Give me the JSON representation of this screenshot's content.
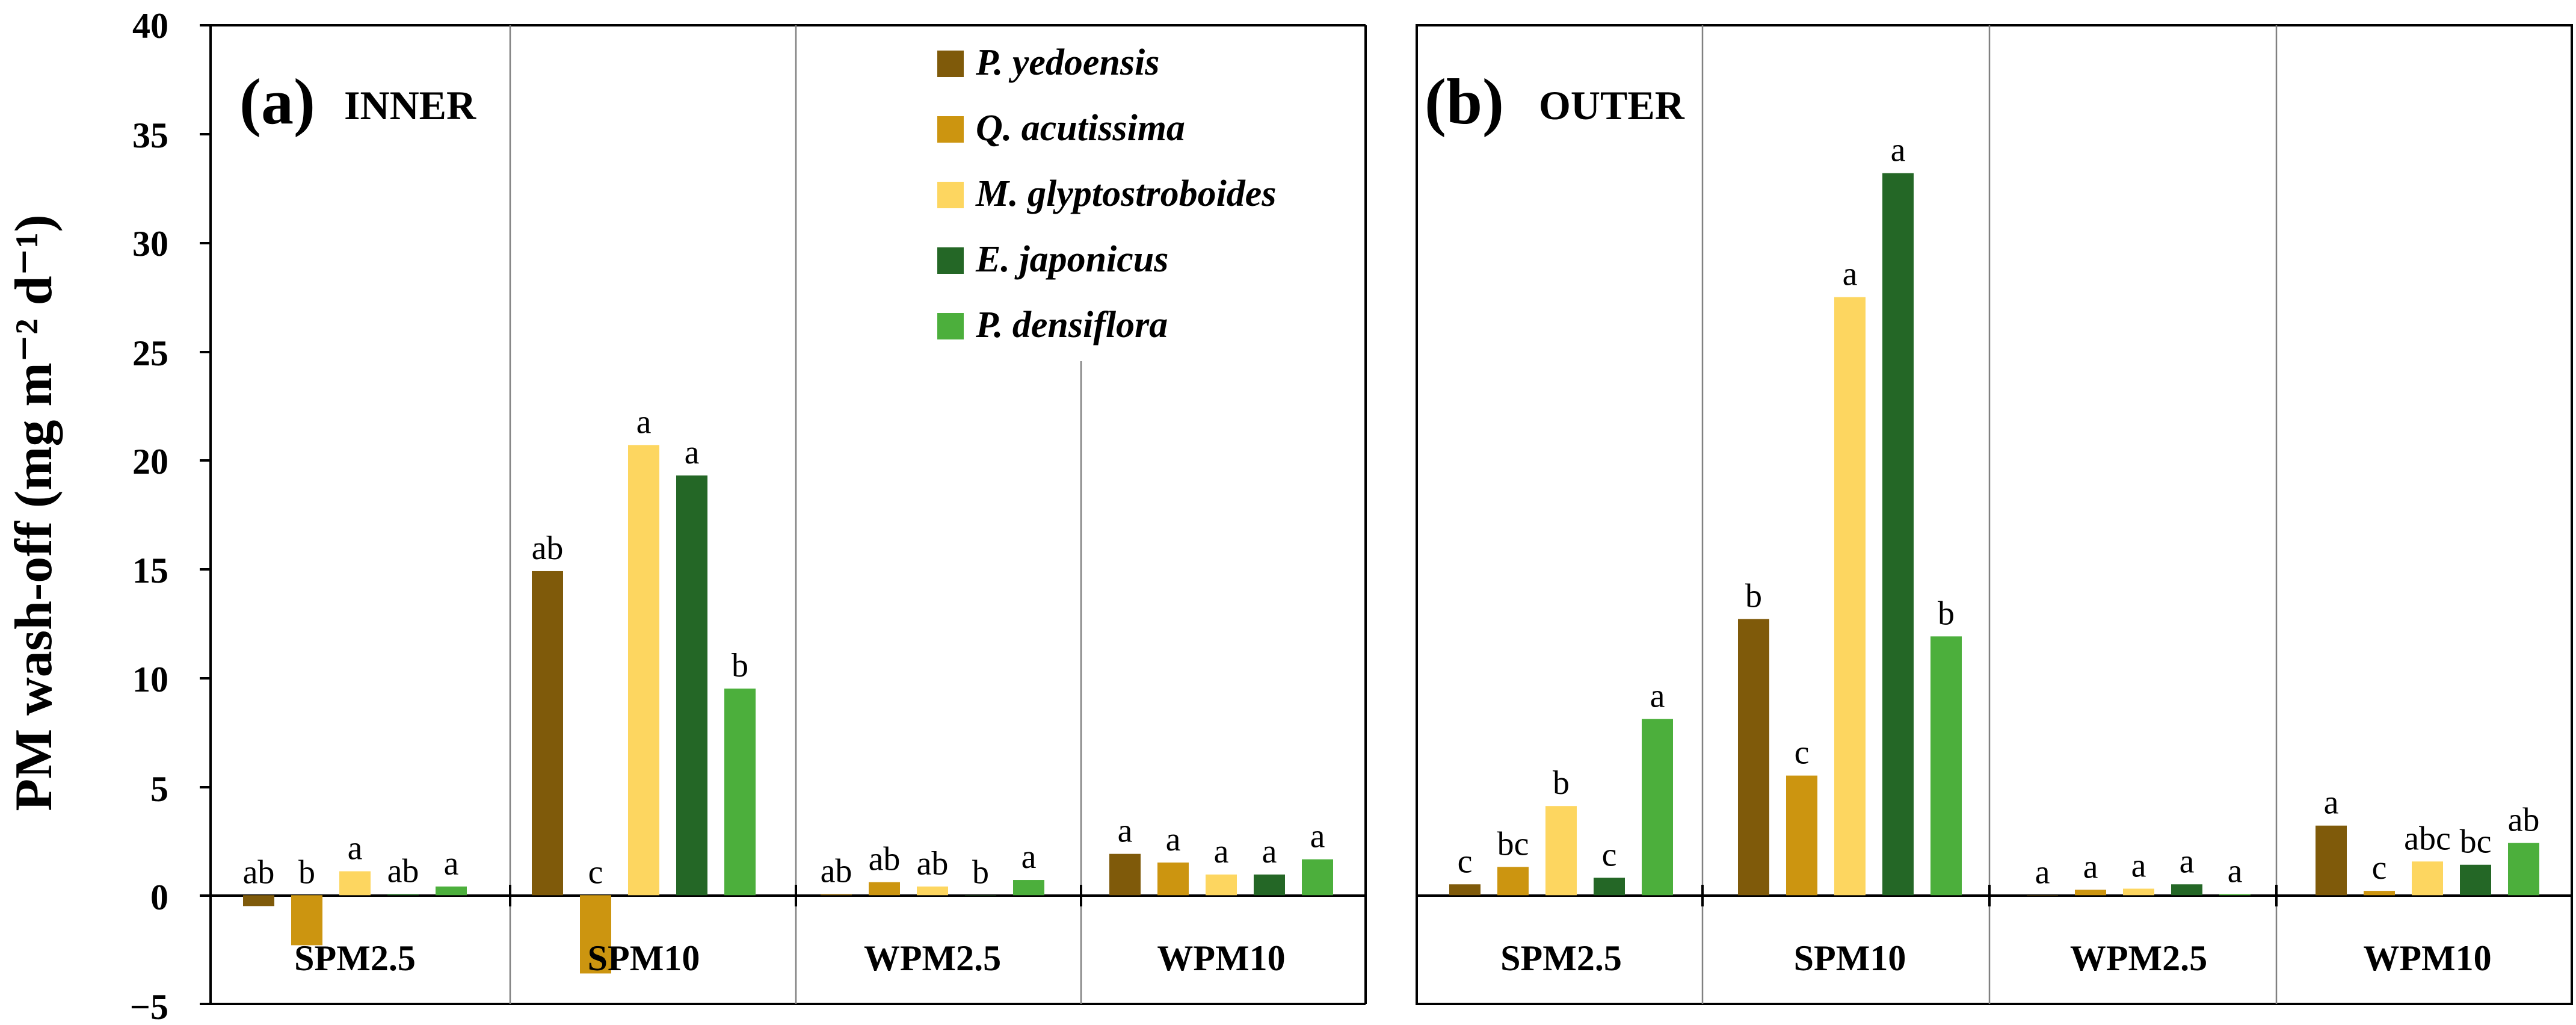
{
  "y_axis_label": "PM wash-off (mg m⁻² d⁻¹)",
  "y_ticks": [
    "40",
    "35",
    "30",
    "25",
    "20",
    "15",
    "10",
    "5",
    "0",
    "−5"
  ],
  "chart_data": [
    {
      "type": "bar",
      "panel_letter": "(a)",
      "panel_title": "INNER",
      "ylim": [
        -5,
        40
      ],
      "y_tick_values": [
        -5,
        0,
        5,
        10,
        15,
        20,
        25,
        30,
        35,
        40
      ],
      "grid": false,
      "categories": [
        "SPM2.5",
        "SPM10",
        "WPM2.5",
        "WPM10"
      ],
      "legend_placement": "top-right",
      "series": [
        {
          "name": "P. yedoensis",
          "color": "#7f5a0a",
          "values": [
            -0.5,
            14.9,
            0.05,
            1.9
          ],
          "labels": [
            "ab",
            "ab",
            "ab",
            "a"
          ]
        },
        {
          "name": "Q. acutissima",
          "color": "#cc9510",
          "values": [
            -2.3,
            -3.6,
            0.6,
            1.5
          ],
          "labels": [
            "b",
            "c",
            "ab",
            "a"
          ]
        },
        {
          "name": "M. glyptostroboides",
          "color": "#fdd660",
          "values": [
            1.1,
            20.7,
            0.4,
            0.95
          ],
          "labels": [
            "a",
            "a",
            "ab",
            "a"
          ]
        },
        {
          "name": "E. japonicus",
          "color": "#246726",
          "values": [
            0.05,
            19.3,
            0.0,
            0.95
          ],
          "labels": [
            "ab",
            "a",
            "b",
            "a"
          ]
        },
        {
          "name": "P. densiflora",
          "color": "#4caf3c",
          "values": [
            0.4,
            9.5,
            0.7,
            1.65
          ],
          "labels": [
            "a",
            "b",
            "a",
            "a"
          ]
        }
      ]
    },
    {
      "type": "bar",
      "panel_letter": "(b)",
      "panel_title": "OUTER",
      "ylim": [
        -5,
        40
      ],
      "grid": false,
      "categories": [
        "SPM2.5",
        "SPM10",
        "WPM2.5",
        "WPM10"
      ],
      "series": [
        {
          "name": "P. yedoensis",
          "color": "#7f5a0a",
          "values": [
            0.5,
            12.7,
            0.0,
            3.2
          ],
          "labels": [
            "c",
            "b",
            "a",
            "a"
          ]
        },
        {
          "name": "Q. acutissima",
          "color": "#cc9510",
          "values": [
            1.3,
            5.5,
            0.25,
            0.2
          ],
          "labels": [
            "bc",
            "c",
            "a",
            "c"
          ]
        },
        {
          "name": "M. glyptostroboides",
          "color": "#fdd660",
          "values": [
            4.1,
            27.5,
            0.3,
            1.55
          ],
          "labels": [
            "b",
            "a",
            "a",
            "abc"
          ]
        },
        {
          "name": "E. japonicus",
          "color": "#246726",
          "values": [
            0.8,
            33.2,
            0.5,
            1.4
          ],
          "labels": [
            "c",
            "a",
            "a",
            "bc"
          ]
        },
        {
          "name": "P. densiflora",
          "color": "#4caf3c",
          "values": [
            8.1,
            11.9,
            0.05,
            2.4
          ],
          "labels": [
            "a",
            "b",
            "a",
            "ab"
          ]
        }
      ]
    }
  ]
}
